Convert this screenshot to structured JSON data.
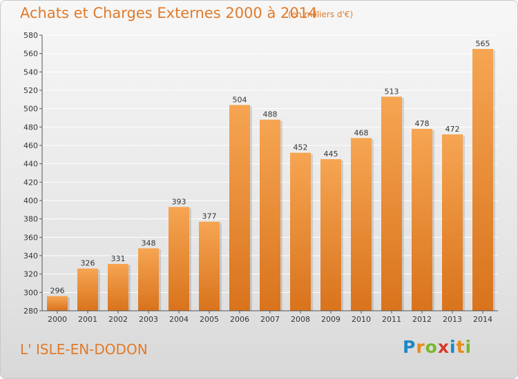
{
  "title": "Achats et Charges Externes 2000 à 2014",
  "subtitle": "(en milliers d'€)",
  "town": "L' ISLE-EN-DODON",
  "logo": {
    "letters": [
      "P",
      "r",
      "o",
      "x",
      "i",
      "t",
      "i"
    ],
    "colors": [
      "#1b88c8",
      "#e88a1a",
      "#78b82a",
      "#d43a2a",
      "#1b88c8",
      "#e88a1a",
      "#78b82a"
    ]
  },
  "colors": {
    "bar_light": "#f6a552",
    "bar_dark": "#d9731c",
    "accent": "#e07a2a"
  },
  "chart_data": {
    "type": "bar",
    "categories": [
      "2000",
      "2001",
      "2002",
      "2003",
      "2004",
      "2005",
      "2006",
      "2007",
      "2008",
      "2009",
      "2010",
      "2011",
      "2012",
      "2013",
      "2014"
    ],
    "values": [
      296,
      326,
      331,
      348,
      393,
      377,
      504,
      488,
      452,
      445,
      468,
      513,
      478,
      472,
      565
    ],
    "ylim": [
      280,
      580
    ],
    "yticks": [
      280,
      300,
      320,
      340,
      360,
      380,
      400,
      420,
      440,
      460,
      480,
      500,
      520,
      540,
      560,
      580
    ],
    "grid": true
  }
}
